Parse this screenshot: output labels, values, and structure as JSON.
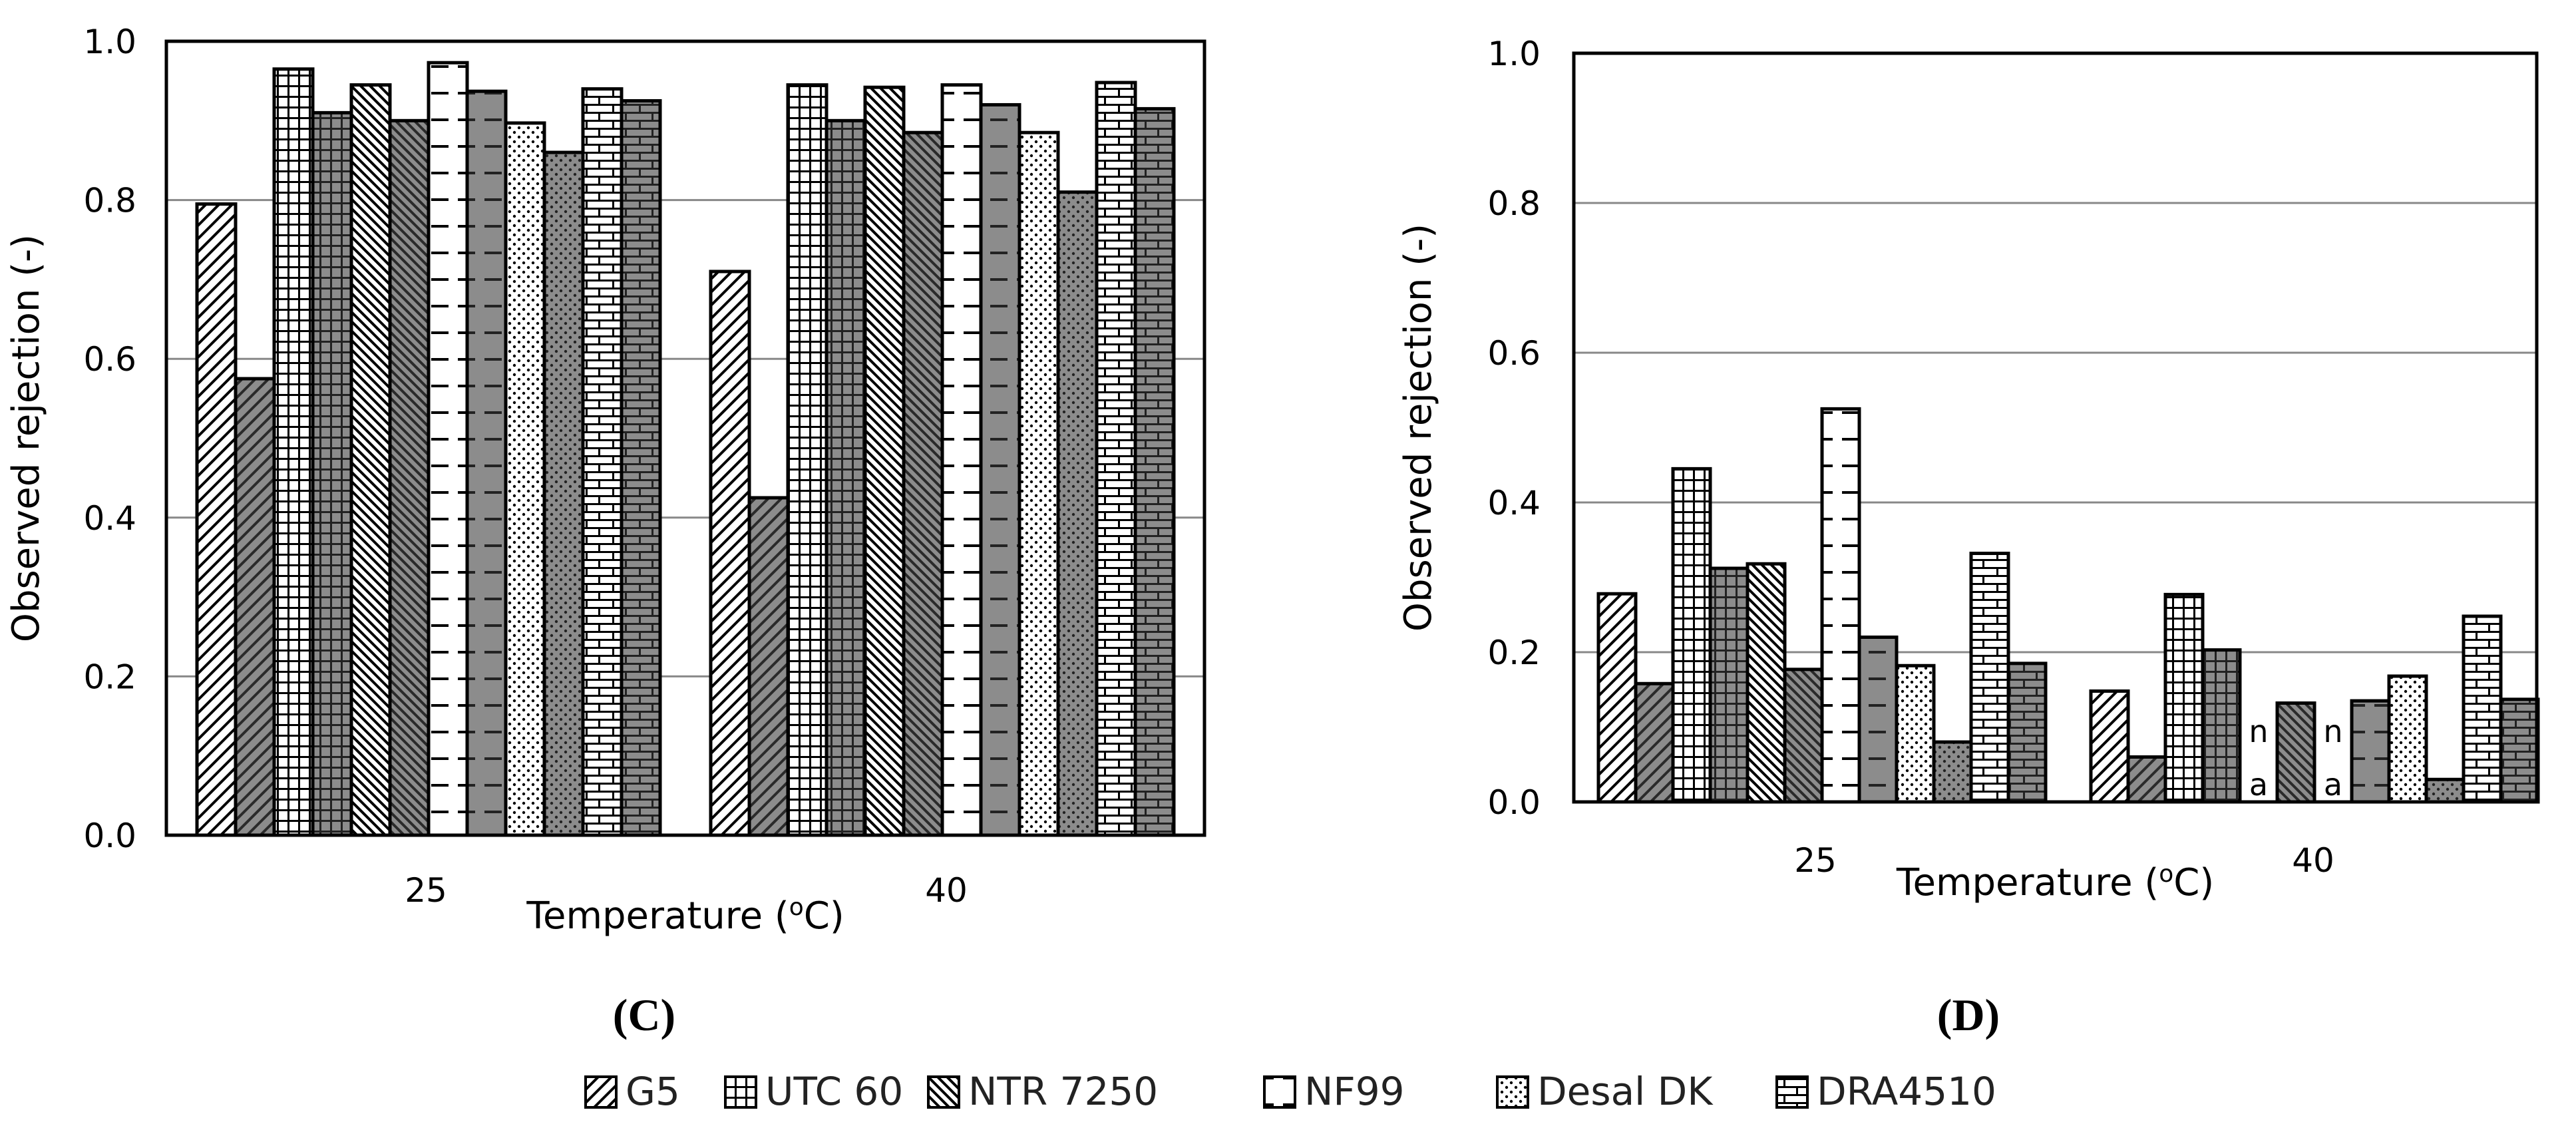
{
  "legend": {
    "items": [
      {
        "label": "G5",
        "pattern": "diag"
      },
      {
        "label": "UTC 60",
        "pattern": "grid"
      },
      {
        "label": "NTR 7250",
        "pattern": "diagdense"
      },
      {
        "label": "NF99",
        "pattern": "nf"
      },
      {
        "label": "Desal DK",
        "pattern": "dots"
      },
      {
        "label": "DRA4510",
        "pattern": "brick"
      }
    ]
  },
  "chart_data": [
    {
      "type": "bar",
      "panel_label": "(C)",
      "xlabel": "Temperature (",
      "xlabel_sup": "o",
      "xlabel_end": "C)",
      "ylabel": "Observed rejection (-)",
      "ylim": [
        0,
        1.0
      ],
      "yticks": [
        "0.0",
        "0.2",
        "0.4",
        "0.6",
        "0.8",
        "1.0"
      ],
      "grid": true,
      "categories": [
        "25",
        "40"
      ],
      "series": [
        {
          "pattern": "diag",
          "values": [
            0.795,
            0.71
          ]
        },
        {
          "pattern": "darkdiag",
          "values": [
            0.575,
            0.425
          ]
        },
        {
          "pattern": "grid",
          "values": [
            0.965,
            0.945
          ]
        },
        {
          "pattern": "darkgrid",
          "values": [
            0.91,
            0.9
          ]
        },
        {
          "pattern": "diagdense",
          "values": [
            0.945,
            0.942
          ]
        },
        {
          "pattern": "darkdiagdense",
          "values": [
            0.9,
            0.885
          ]
        },
        {
          "pattern": "nf",
          "values": [
            0.973,
            0.945
          ]
        },
        {
          "pattern": "darknf",
          "values": [
            0.937,
            0.92
          ]
        },
        {
          "pattern": "dots",
          "values": [
            0.897,
            0.885
          ]
        },
        {
          "pattern": "darkdots",
          "values": [
            0.86,
            0.81
          ]
        },
        {
          "pattern": "brick",
          "values": [
            0.94,
            0.948
          ]
        },
        {
          "pattern": "darkbrick",
          "values": [
            0.925,
            0.915
          ]
        }
      ],
      "annotations": []
    },
    {
      "type": "bar",
      "panel_label": "(D)",
      "xlabel": "Temperature (",
      "xlabel_sup": "o",
      "xlabel_end": "C)",
      "ylabel": "Observed rejection (-)",
      "ylim": [
        0,
        1.0
      ],
      "yticks": [
        "0.0",
        "0.2",
        "0.4",
        "0.6",
        "0.8",
        "1.0"
      ],
      "grid": true,
      "categories": [
        "25",
        "40"
      ],
      "series": [
        {
          "pattern": "diag",
          "values": [
            0.278,
            0.148
          ]
        },
        {
          "pattern": "darkdiag",
          "values": [
            0.158,
            0.06
          ]
        },
        {
          "pattern": "grid",
          "values": [
            0.445,
            0.277
          ]
        },
        {
          "pattern": "darkgrid",
          "values": [
            0.312,
            0.203
          ]
        },
        {
          "pattern": "diagdense",
          "values": [
            0.318,
            0
          ]
        },
        {
          "pattern": "darkdiagdense",
          "values": [
            0.177,
            0.132
          ]
        },
        {
          "pattern": "nf",
          "values": [
            0.525,
            0
          ]
        },
        {
          "pattern": "darknf",
          "values": [
            0.22,
            0.135
          ]
        },
        {
          "pattern": "dots",
          "values": [
            0.182,
            0.168
          ]
        },
        {
          "pattern": "darkdots",
          "values": [
            0.08,
            0.03
          ]
        },
        {
          "pattern": "brick",
          "values": [
            0.332,
            0.248
          ]
        },
        {
          "pattern": "darkbrick",
          "values": [
            0.185,
            0.137
          ]
        }
      ],
      "annotations": [
        {
          "category_index": 1,
          "series_index": 4,
          "text": "n a"
        },
        {
          "category_index": 1,
          "series_index": 6,
          "text": "n a"
        }
      ]
    }
  ]
}
